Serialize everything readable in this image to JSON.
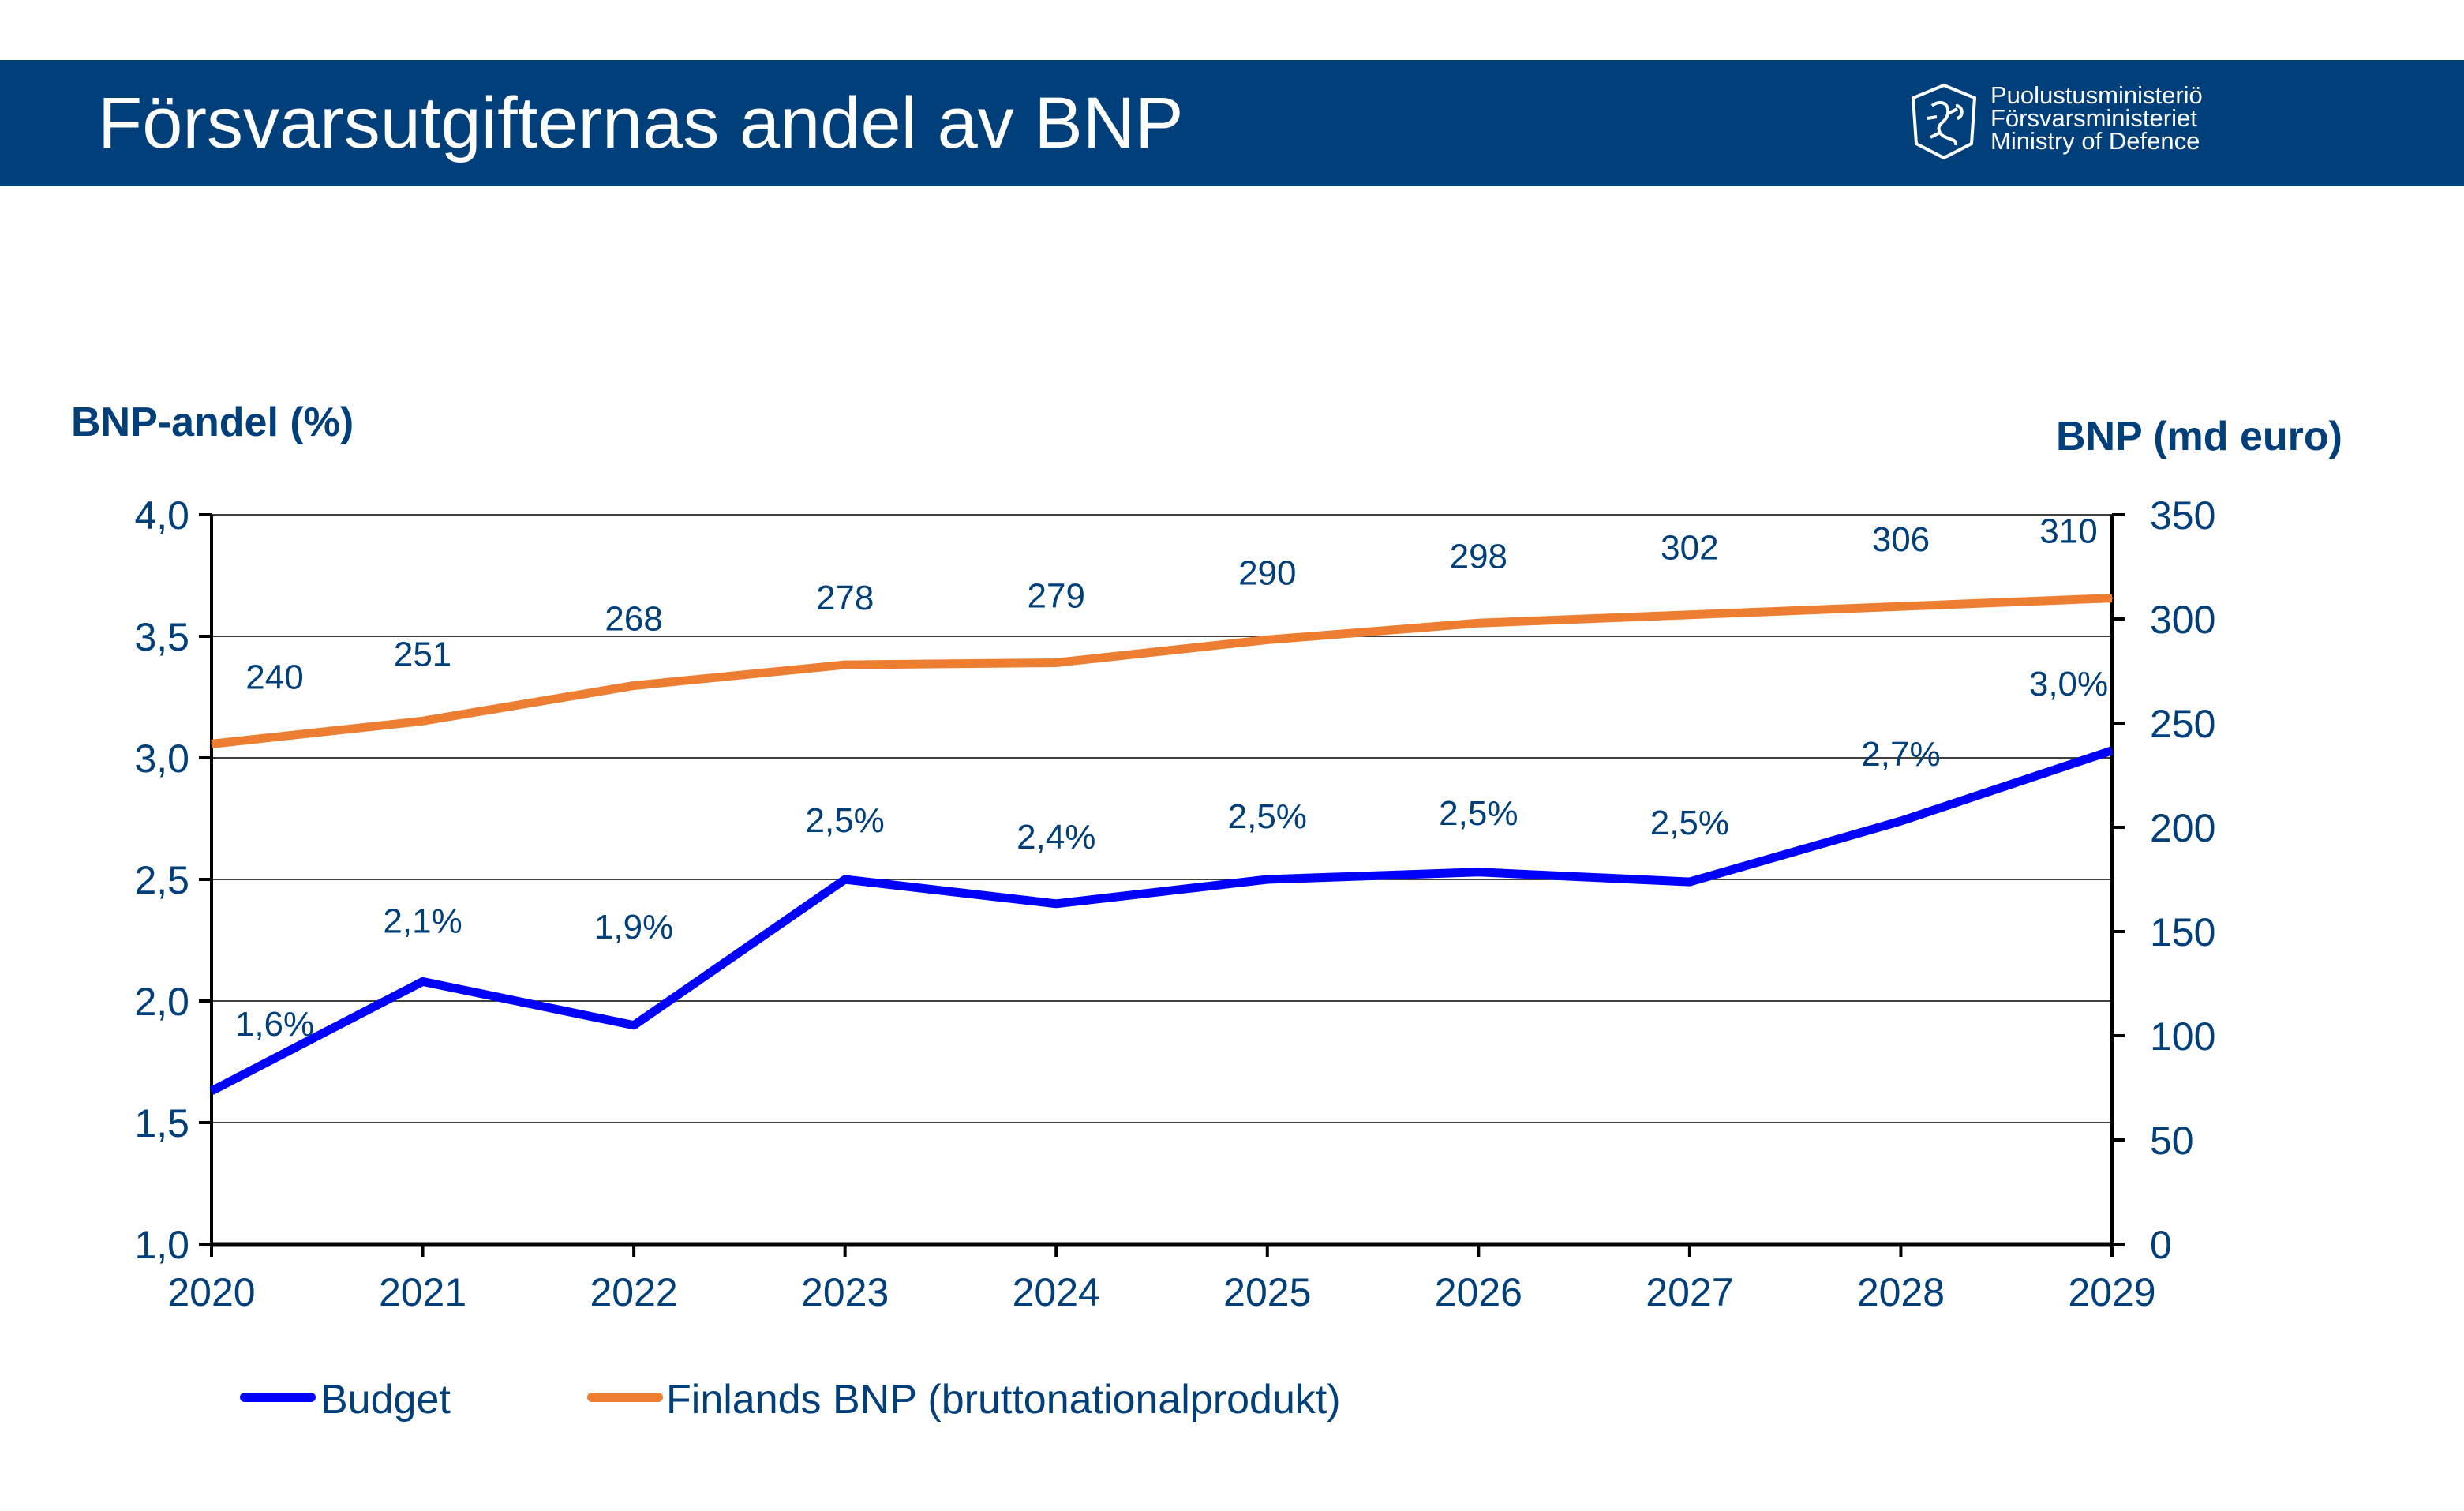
{
  "header": {
    "title": "Försvarsutgifternas andel av BNP",
    "logo_lines": [
      "Puolustusministeriö",
      "Försvarsministeriet",
      "Ministry of Defence"
    ]
  },
  "colors": {
    "header_bg": "#003F7A",
    "text": "#003F7A",
    "budget": "#0000FF",
    "bnp": "#ED7D31"
  },
  "chart_data": {
    "type": "line",
    "x": [
      "2020",
      "2021",
      "2022",
      "2023",
      "2024",
      "2025",
      "2026",
      "2027",
      "2028",
      "2029"
    ],
    "y_left": {
      "label": "BNP-andel (%)",
      "lim": [
        1.0,
        4.0
      ],
      "ticks": [
        "1,0",
        "1,5",
        "2,0",
        "2,5",
        "3,0",
        "3,5",
        "4,0"
      ]
    },
    "y_right": {
      "label": "BNP (md euro)",
      "lim": [
        0,
        350
      ],
      "ticks": [
        "0",
        "50",
        "100",
        "150",
        "200",
        "250",
        "300",
        "350"
      ]
    },
    "grid": true,
    "legend": "bottom-left",
    "series": [
      {
        "name": "Budget",
        "axis": "left",
        "values": [
          1.63,
          2.08,
          1.9,
          2.5,
          2.4,
          2.5,
          2.53,
          2.49,
          2.74,
          3.03
        ],
        "labels": [
          "1,6%",
          "2,1%",
          "1,9%",
          "2,5%",
          "2,4%",
          "2,5%",
          "2,5%",
          "2,5%",
          "2,7%",
          "3,0%"
        ]
      },
      {
        "name": "Finlands BNP (bruttonationalprodukt)",
        "axis": "right",
        "values": [
          240,
          251,
          268,
          278,
          279,
          290,
          298,
          302,
          306,
          310
        ],
        "labels": [
          "240",
          "251",
          "268",
          "278",
          "279",
          "290",
          "298",
          "302",
          "306",
          "310"
        ]
      }
    ]
  }
}
